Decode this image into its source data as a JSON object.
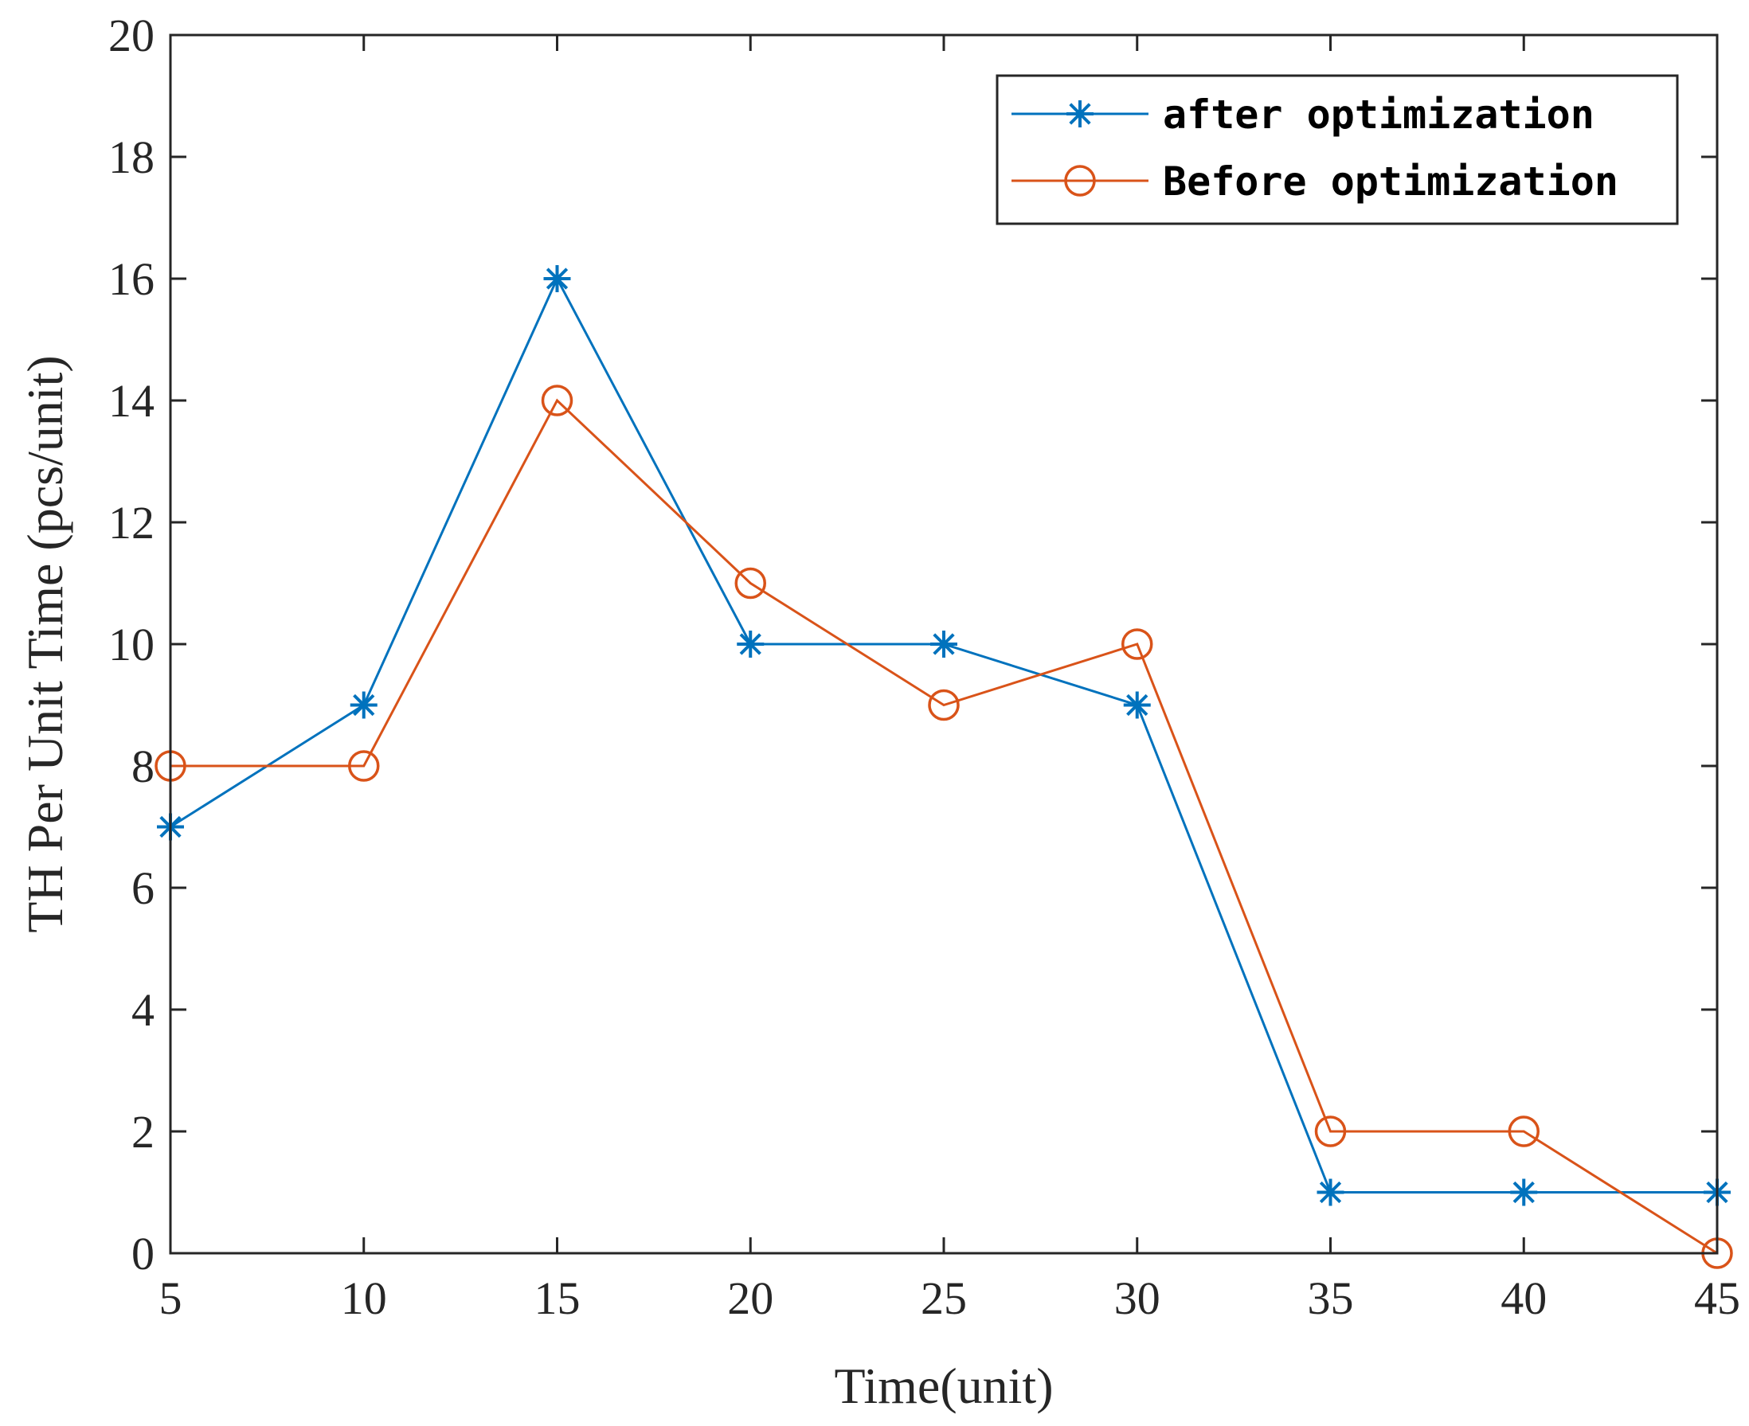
{
  "chart_data": {
    "type": "line",
    "title": "",
    "xlabel": "Time(unit)",
    "ylabel": "TH Per Unit Time (pcs/unit)",
    "xlim": [
      5,
      45
    ],
    "ylim": [
      0,
      20
    ],
    "x": [
      5,
      10,
      15,
      20,
      25,
      30,
      35,
      40,
      45
    ],
    "xticks": [
      5,
      10,
      15,
      20,
      25,
      30,
      35,
      40,
      45
    ],
    "yticks": [
      0,
      2,
      4,
      6,
      8,
      10,
      12,
      14,
      16,
      18,
      20
    ],
    "grid": false,
    "legend_position": "top-right",
    "series": [
      {
        "name": "after optimization",
        "marker": "asterisk",
        "color": "#0072BD",
        "values": [
          7,
          9,
          16,
          10,
          10,
          9,
          1,
          1,
          1
        ]
      },
      {
        "name": "Before optimization",
        "marker": "circle",
        "color": "#D95319",
        "values": [
          8,
          8,
          14,
          11,
          9,
          10,
          2,
          2,
          0
        ]
      }
    ]
  }
}
